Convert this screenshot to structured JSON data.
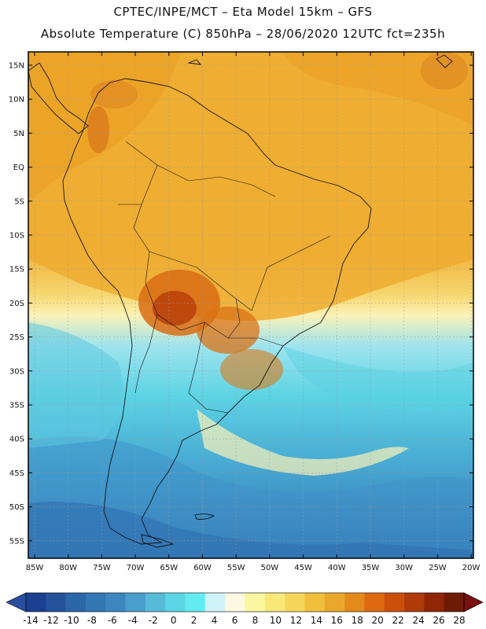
{
  "title_line1": "CPTEC/INPE/MCT –  Eta Model 15km – GFS",
  "title_line2": "Absolute Temperature (C) 850hPa – 28/06/2020 12UTC fct=235h",
  "lat_labels": [
    "15N",
    "10N",
    "5N",
    "EQ",
    "5S",
    "10S",
    "15S",
    "20S",
    "25S",
    "30S",
    "35S",
    "40S",
    "45S",
    "50S",
    "55S"
  ],
  "lon_labels": [
    "85W",
    "80W",
    "75W",
    "70W",
    "65W",
    "60W",
    "55W",
    "50W",
    "45W",
    "40W",
    "35W",
    "30W",
    "25W",
    "20W"
  ],
  "colorbar": {
    "ticks": [
      "-14",
      "-12",
      "-10",
      "-8",
      "-6",
      "-4",
      "-2",
      "0",
      "2",
      "4",
      "6",
      "8",
      "10",
      "12",
      "14",
      "16",
      "18",
      "20",
      "22",
      "24",
      "26",
      "28"
    ],
    "colors": [
      "#1c3f8f",
      "#24539b",
      "#2a66a8",
      "#3376b4",
      "#3c87c0",
      "#4a9ecc",
      "#55bbd8",
      "#5ad6e6",
      "#62ecf2",
      "#cff2f8",
      "#fdf8e2",
      "#fbf6a0",
      "#f8e878",
      "#f6d65a",
      "#f0c03c",
      "#eaa82a",
      "#e48a1a",
      "#dd6a10",
      "#cc4f0a",
      "#b03a08",
      "#8f2606",
      "#6e1a04"
    ],
    "under_color": "#2a4fa0",
    "over_color": "#7a1010"
  }
}
